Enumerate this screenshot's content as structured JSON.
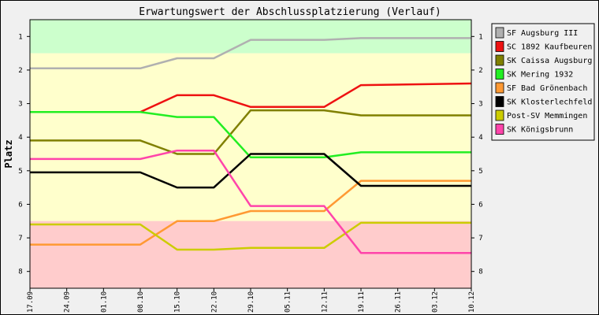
{
  "chart_data": {
    "type": "line",
    "title": "Erwartungswert der Abschlussplatzierung (Verlauf)",
    "ylabel": "Platz",
    "xlabel": "",
    "ylim": [
      0.5,
      8.5
    ],
    "y_inverted": true,
    "y_ticks": [
      "1",
      "2",
      "3",
      "4",
      "5",
      "6",
      "7",
      "8"
    ],
    "categories": [
      "17.09",
      "24.09",
      "01.10",
      "08.10",
      "15.10",
      "22.10",
      "29.10",
      "05.11",
      "12.11",
      "19.11",
      "26.11",
      "03.12",
      "10.12"
    ],
    "background_zones": [
      {
        "from": 0.5,
        "to": 1.5,
        "color": "#ccffcc"
      },
      {
        "from": 1.5,
        "to": 6.5,
        "color": "#ffffcc"
      },
      {
        "from": 6.5,
        "to": 8.5,
        "color": "#ffcccc"
      }
    ],
    "legend_position": "right",
    "grid": false,
    "series": [
      {
        "name": "SF Augsburg III",
        "color": "#b0b0b0",
        "x": [
          "17.09",
          "08.10",
          "15.10",
          "22.10",
          "29.10",
          "12.11",
          "19.11",
          "10.12"
        ],
        "values": [
          1.95,
          1.95,
          1.65,
          1.65,
          1.1,
          1.1,
          1.05,
          1.05
        ]
      },
      {
        "name": "SC 1892 Kaufbeuren",
        "color": "#ee1111",
        "x": [
          "17.09",
          "08.10",
          "15.10",
          "22.10",
          "29.10",
          "12.11",
          "19.11",
          "10.12"
        ],
        "values": [
          3.25,
          3.25,
          2.75,
          2.75,
          3.1,
          3.1,
          2.45,
          2.4
        ]
      },
      {
        "name": "SK Caissa Augsburg",
        "color": "#808000",
        "x": [
          "17.09",
          "08.10",
          "15.10",
          "22.10",
          "29.10",
          "12.11",
          "19.11",
          "10.12"
        ],
        "values": [
          4.1,
          4.1,
          4.5,
          4.5,
          3.2,
          3.2,
          3.35,
          3.35
        ]
      },
      {
        "name": "SK Mering 1932",
        "color": "#22ee22",
        "x": [
          "17.09",
          "08.10",
          "15.10",
          "22.10",
          "29.10",
          "12.11",
          "19.11",
          "10.12"
        ],
        "values": [
          3.25,
          3.25,
          3.4,
          3.4,
          4.6,
          4.6,
          4.45,
          4.45
        ]
      },
      {
        "name": "SF Bad Grönenbach",
        "color": "#ff9933",
        "x": [
          "17.09",
          "08.10",
          "15.10",
          "22.10",
          "29.10",
          "12.11",
          "19.11",
          "10.12"
        ],
        "values": [
          7.2,
          7.2,
          6.5,
          6.5,
          6.2,
          6.2,
          5.3,
          5.3
        ]
      },
      {
        "name": "SK Klosterlechfeld",
        "color": "#000000",
        "x": [
          "17.09",
          "08.10",
          "15.10",
          "22.10",
          "29.10",
          "12.11",
          "19.11",
          "10.12"
        ],
        "values": [
          5.05,
          5.05,
          5.5,
          5.5,
          4.5,
          4.5,
          5.45,
          5.45
        ]
      },
      {
        "name": "Post-SV Memmingen",
        "color": "#cccc00",
        "x": [
          "17.09",
          "08.10",
          "15.10",
          "22.10",
          "29.10",
          "12.11",
          "19.11",
          "10.12"
        ],
        "values": [
          6.6,
          6.6,
          7.35,
          7.35,
          7.3,
          7.3,
          6.55,
          6.55
        ]
      },
      {
        "name": "SK Königsbrunn",
        "color": "#ff44aa",
        "x": [
          "17.09",
          "08.10",
          "15.10",
          "22.10",
          "29.10",
          "12.11",
          "19.11",
          "10.12"
        ],
        "values": [
          4.65,
          4.65,
          4.4,
          4.4,
          6.05,
          6.05,
          7.45,
          7.45
        ]
      }
    ]
  }
}
